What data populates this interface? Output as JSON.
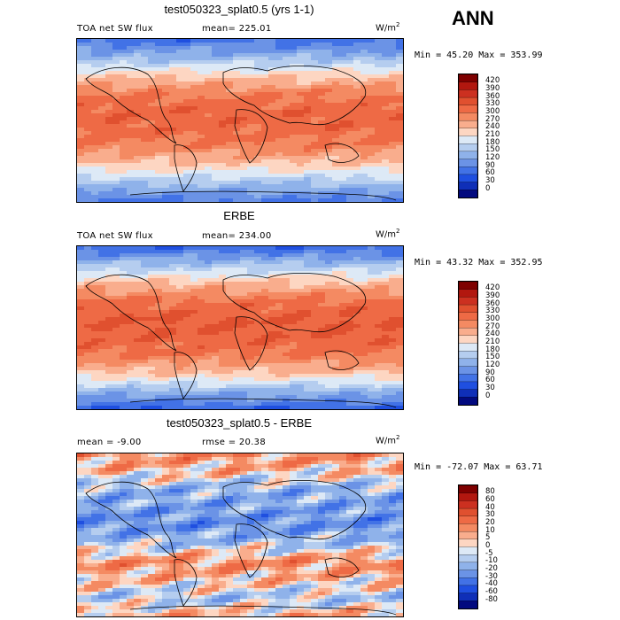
{
  "header": {
    "season": "ANN"
  },
  "chart_data": [
    {
      "type": "heatmap",
      "title": "test050323_splat0.5 (yrs 1-1)",
      "variable": "TOA net SW flux",
      "stat_text": "mean= 225.01",
      "units_base": "W/m",
      "units_exp": "2",
      "minmax_text": "Min =  45.20 Max = 353.99",
      "min": 45.2,
      "max": 353.99,
      "mean": 225.01,
      "legend_levels": [
        "420",
        "390",
        "360",
        "330",
        "300",
        "270",
        "240",
        "210",
        "180",
        "150",
        "120",
        "90",
        "60",
        "30",
        "0"
      ],
      "legend_colors": [
        "#7f0000",
        "#b2170f",
        "#cc3020",
        "#e0502f",
        "#ee6a45",
        "#f48a62",
        "#f9ad8d",
        "#fdd6c2",
        "#dde9f6",
        "#b5cdef",
        "#8fb2ea",
        "#6b93e6",
        "#4272e6",
        "#1f4fe0",
        "#0f2fb8",
        "#020a7f"
      ],
      "profile": [
        70,
        140,
        230,
        295,
        320,
        315,
        290,
        230,
        150,
        80
      ]
    },
    {
      "type": "heatmap",
      "title": "ERBE",
      "variable": "TOA net SW flux",
      "stat_text": "mean= 234.00",
      "units_base": "W/m",
      "units_exp": "2",
      "minmax_text": "Min =  43.32 Max = 352.95",
      "min": 43.32,
      "max": 352.95,
      "mean": 234.0,
      "legend_levels": [
        "420",
        "390",
        "360",
        "330",
        "300",
        "270",
        "240",
        "210",
        "180",
        "150",
        "120",
        "90",
        "60",
        "30",
        "0"
      ],
      "legend_colors": [
        "#7f0000",
        "#b2170f",
        "#cc3020",
        "#e0502f",
        "#ee6a45",
        "#f48a62",
        "#f9ad8d",
        "#fdd6c2",
        "#dde9f6",
        "#b5cdef",
        "#8fb2ea",
        "#6b93e6",
        "#4272e6",
        "#1f4fe0",
        "#0f2fb8",
        "#020a7f"
      ],
      "profile": [
        60,
        150,
        240,
        305,
        330,
        325,
        300,
        240,
        140,
        60
      ]
    },
    {
      "type": "heatmap",
      "title": "test050323_splat0.5 - ERBE",
      "variable": "mean =  -9.00",
      "stat_text": "rmse =  20.38",
      "units_base": "W/m",
      "units_exp": "2",
      "minmax_text": "Min = -72.07 Max =  63.71",
      "min": -72.07,
      "max": 63.71,
      "mean": -9.0,
      "rmse": 20.38,
      "legend_levels": [
        "80",
        "60",
        "40",
        "30",
        "20",
        "10",
        "5",
        "0",
        "-5",
        "-10",
        "-20",
        "-30",
        "-40",
        "-60",
        "-80"
      ],
      "legend_colors": [
        "#7f0000",
        "#b2170f",
        "#cc3020",
        "#e0502f",
        "#ee6a45",
        "#f48a62",
        "#f9ad8d",
        "#fdd6c2",
        "#dde9f6",
        "#b5cdef",
        "#8fb2ea",
        "#6b93e6",
        "#4272e6",
        "#1f4fe0",
        "#0f2fb8",
        "#020a7f"
      ],
      "profile": [
        15,
        5,
        -15,
        -20,
        -25,
        -10,
        15,
        5,
        -10,
        10
      ]
    }
  ]
}
